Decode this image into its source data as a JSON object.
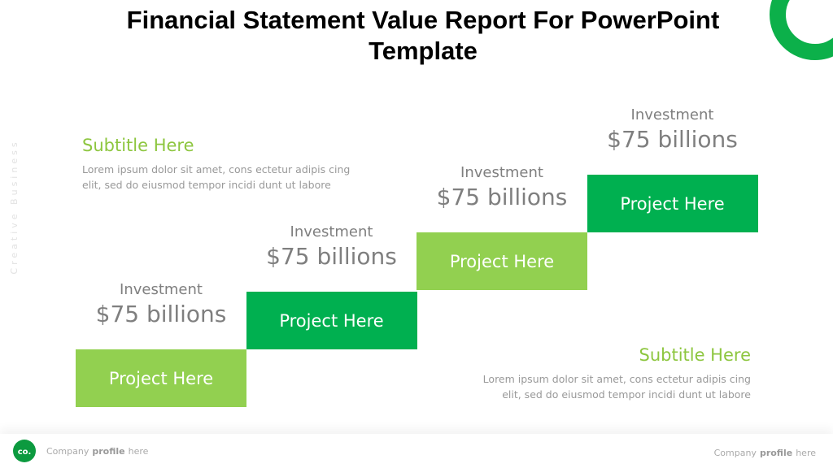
{
  "header": {
    "title": "Financial Statement Value Report For PowerPoint Template"
  },
  "side_text": "Creative Business",
  "subtitle_top": {
    "title": "Subtitle Here",
    "lines": [
      "Lorem ipsum dolor sit amet, cons ectetur adipis cing",
      "elit, sed do eiusmod tempor incidi dunt ut labore"
    ]
  },
  "subtitle_bottom": {
    "title": "Subtitle Here",
    "lines": [
      "Lorem ipsum dolor sit amet, cons ectetur adipis cing",
      "elit, sed do eiusmod tempor incidi dunt ut labore"
    ]
  },
  "steps": [
    {
      "label": "Investment",
      "amount": "$75 billions",
      "project": "Project Here"
    },
    {
      "label": "Investment",
      "amount": "$75 billions",
      "project": "Project Here"
    },
    {
      "label": "Investment",
      "amount": "$75 billions",
      "project": "Project Here"
    },
    {
      "label": "Investment",
      "amount": "$75 billions",
      "project": "Project Here"
    }
  ],
  "footer": {
    "logo": "co.",
    "left": [
      "Company",
      "profile",
      "here"
    ],
    "right": [
      "Company",
      "profile",
      "here"
    ]
  }
}
